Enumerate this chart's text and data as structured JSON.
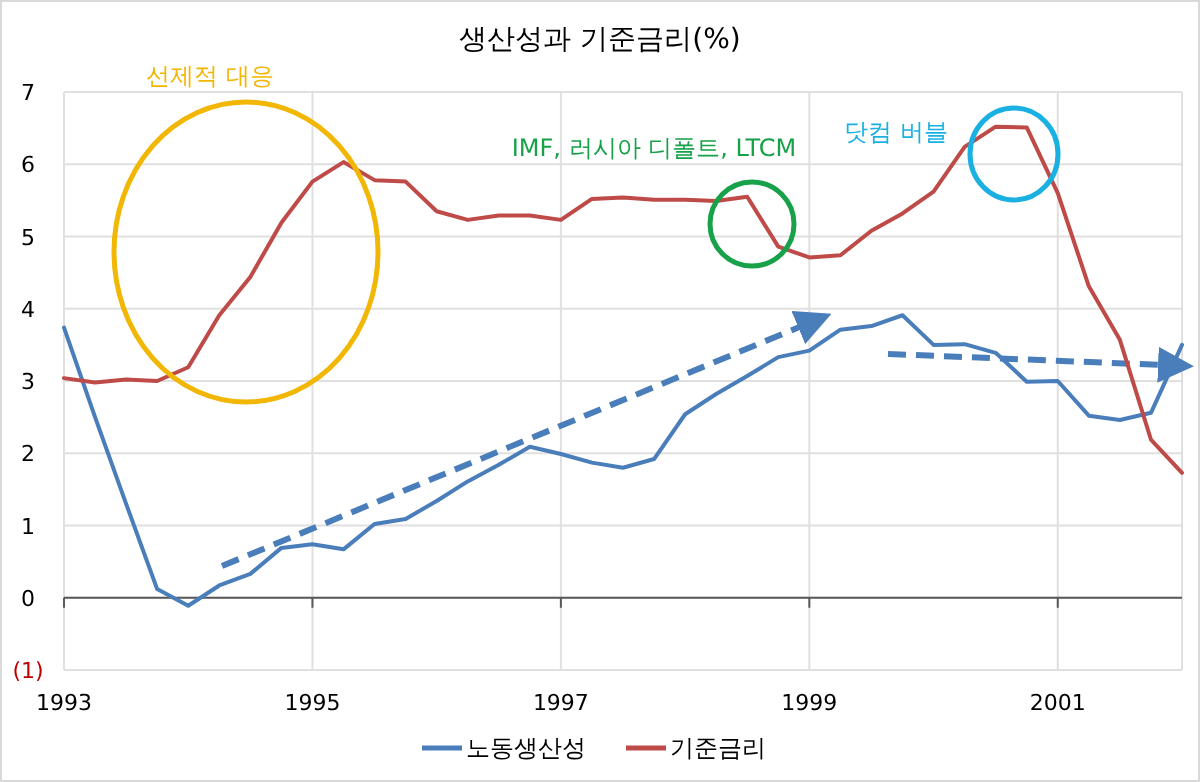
{
  "chart_data": {
    "type": "line",
    "title": "생산성과 기준금리(%)",
    "x": [
      1993,
      1993.25,
      1993.5,
      1993.75,
      1994,
      1994.25,
      1994.5,
      1994.75,
      1995,
      1995.25,
      1995.5,
      1995.75,
      1996,
      1996.25,
      1996.5,
      1996.75,
      1997,
      1997.25,
      1997.5,
      1997.75,
      1998,
      1998.25,
      1998.5,
      1998.75,
      1999,
      1999.25,
      1999.5,
      1999.75,
      2000,
      2000.25,
      2000.5,
      2000.75,
      2001,
      2001.25,
      2001.5,
      2001.75,
      2002
    ],
    "series": [
      {
        "name": "노동생산성",
        "color": "#4a7ebb",
        "values": [
          3.74,
          2.5,
          1.3,
          0.12,
          -0.11,
          0.17,
          0.33,
          0.69,
          0.74,
          0.67,
          1.02,
          1.09,
          1.34,
          1.61,
          1.84,
          2.09,
          1.99,
          1.87,
          1.8,
          1.92,
          2.54,
          2.82,
          3.07,
          3.33,
          3.42,
          3.71,
          3.76,
          3.91,
          3.5,
          3.51,
          3.39,
          2.99,
          3.0,
          2.52,
          2.46,
          2.56,
          3.5
        ]
      },
      {
        "name": "기준금리",
        "color": "#be4b48",
        "values": [
          3.04,
          2.98,
          3.02,
          3.0,
          3.19,
          3.91,
          4.44,
          5.19,
          5.76,
          6.03,
          5.78,
          5.76,
          5.35,
          5.23,
          5.29,
          5.29,
          5.23,
          5.52,
          5.54,
          5.51,
          5.51,
          5.49,
          5.55,
          4.86,
          4.71,
          4.74,
          5.08,
          5.32,
          5.62,
          6.24,
          6.52,
          6.51,
          5.6,
          4.31,
          3.57,
          2.19,
          1.73
        ]
      }
    ],
    "xlim": [
      1993,
      2002
    ],
    "xticks": [
      1993,
      1995,
      1997,
      1999,
      2001
    ],
    "ylim": [
      -1,
      7
    ],
    "yticks": [
      {
        "value": -1,
        "label": "(1)"
      },
      0,
      1,
      2,
      3,
      4,
      5,
      6,
      7
    ],
    "grid": true,
    "legend": "bottom",
    "annotations": [
      "선제적 대응",
      "IMF, 러시아 디폴트, LTCM",
      "닷컴 버블"
    ]
  }
}
